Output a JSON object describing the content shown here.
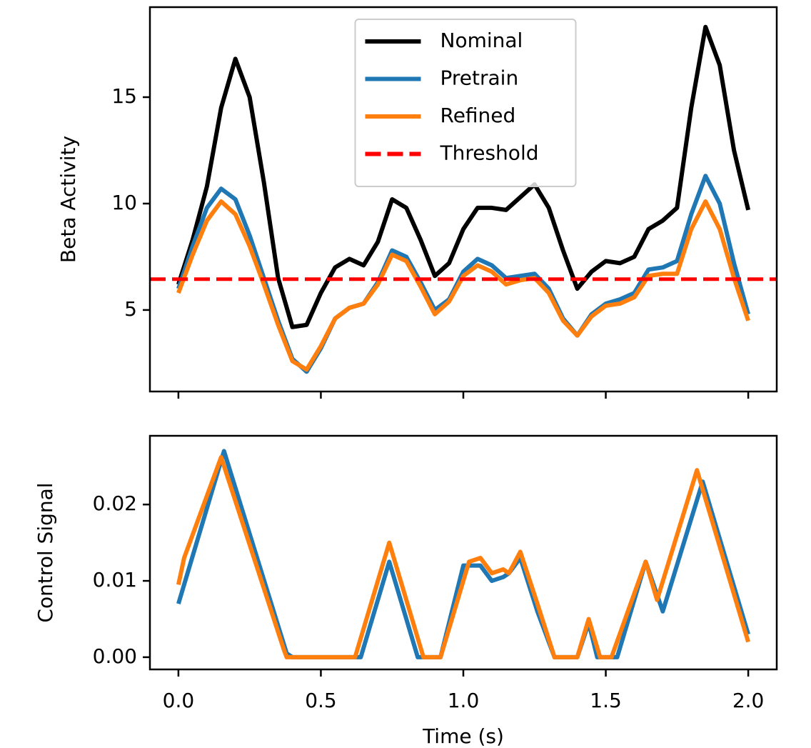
{
  "chart_data": [
    {
      "type": "line",
      "ylabel": "Beta Activity",
      "x": [
        0,
        0.05,
        0.1,
        0.15,
        0.2,
        0.25,
        0.3,
        0.35,
        0.4,
        0.45,
        0.5,
        0.55,
        0.6,
        0.65,
        0.7,
        0.75,
        0.8,
        0.85,
        0.9,
        0.95,
        1.0,
        1.05,
        1.1,
        1.15,
        1.2,
        1.25,
        1.3,
        1.35,
        1.4,
        1.45,
        1.5,
        1.55,
        1.6,
        1.65,
        1.7,
        1.75,
        1.8,
        1.85,
        1.9,
        1.95,
        2.0
      ],
      "series": [
        {
          "name": "Nominal",
          "color": "#000000",
          "values": [
            6.2,
            8.3,
            10.8,
            14.5,
            16.8,
            15.0,
            11.0,
            6.5,
            4.2,
            4.3,
            5.8,
            7.0,
            7.4,
            7.1,
            8.2,
            10.2,
            9.8,
            8.3,
            6.6,
            7.2,
            8.8,
            9.8,
            9.8,
            9.7,
            10.3,
            10.9,
            9.8,
            7.8,
            6.0,
            6.8,
            7.3,
            7.2,
            7.5,
            8.8,
            9.2,
            9.8,
            14.5,
            18.3,
            16.5,
            12.5,
            9.7
          ]
        },
        {
          "name": "Pretrain",
          "color": "#1f77b4",
          "values": [
            6.0,
            8.0,
            9.8,
            10.7,
            10.2,
            8.5,
            6.5,
            4.5,
            2.7,
            2.1,
            3.2,
            4.6,
            5.1,
            5.3,
            6.3,
            7.8,
            7.5,
            6.3,
            5.0,
            5.5,
            6.8,
            7.4,
            7.1,
            6.5,
            6.6,
            6.7,
            6.0,
            4.6,
            3.8,
            4.8,
            5.3,
            5.5,
            5.8,
            6.9,
            7.0,
            7.3,
            9.5,
            11.3,
            10.0,
            7.2,
            4.8
          ]
        },
        {
          "name": "Refined",
          "color": "#ff7f0e",
          "values": [
            5.8,
            7.6,
            9.2,
            10.1,
            9.5,
            8.0,
            6.2,
            4.3,
            2.6,
            2.2,
            3.3,
            4.6,
            5.1,
            5.3,
            6.2,
            7.6,
            7.3,
            6.1,
            4.8,
            5.4,
            6.6,
            7.1,
            6.8,
            6.2,
            6.4,
            6.5,
            5.8,
            4.5,
            3.8,
            4.7,
            5.2,
            5.3,
            5.6,
            6.6,
            6.7,
            6.7,
            8.8,
            10.1,
            8.8,
            6.5,
            4.5
          ]
        }
      ],
      "threshold": {
        "name": "Threshold",
        "value": 6.45,
        "color": "#ff0000",
        "style": "dashed"
      },
      "xlim": [
        -0.1,
        2.1
      ],
      "xticks": [
        {
          "value": 0,
          "label": "0.0"
        },
        0.5,
        {
          "value": 1,
          "label": "1.0"
        },
        1.5,
        {
          "value": 2,
          "label": "2.0"
        }
      ],
      "xtick_labels": false,
      "ylim": [
        1.17,
        19.23
      ],
      "yticks": [
        5,
        10,
        15
      ],
      "legend": "upper center"
    },
    {
      "type": "line",
      "xlabel": "Time (s)",
      "ylabel": "Control Signal",
      "series": [
        {
          "name": "Pretrain",
          "color": "#1f77b4",
          "x": [
            0,
            0.16,
            0.38,
            0.4,
            0.64,
            0.74,
            0.84,
            0.92,
            1.0,
            1.04,
            1.06,
            1.1,
            1.14,
            1.16,
            1.2,
            1.26,
            1.32,
            1.4,
            1.44,
            1.47,
            1.54,
            1.64,
            1.7,
            1.84,
            2.0
          ],
          "values": [
            0.007,
            0.027,
            0.0005,
            0,
            0,
            0.0125,
            0,
            0,
            0.012,
            0.012,
            0.012,
            0.01,
            0.0105,
            0.011,
            0.013,
            0.006,
            0,
            0,
            0.0045,
            0,
            0,
            0.0125,
            0.006,
            0.023,
            0.003
          ]
        },
        {
          "name": "Refined",
          "color": "#ff7f0e",
          "x": [
            0,
            0.02,
            0.15,
            0.37,
            0.38,
            0.62,
            0.74,
            0.86,
            0.92,
            1.02,
            1.06,
            1.1,
            1.14,
            1.16,
            1.2,
            1.26,
            1.32,
            1.4,
            1.44,
            1.48,
            1.52,
            1.64,
            1.68,
            1.82,
            2.0
          ],
          "values": [
            0.0095,
            0.013,
            0.0262,
            0.001,
            0,
            0,
            0.015,
            0,
            0,
            0.0125,
            0.013,
            0.011,
            0.0115,
            0.011,
            0.0138,
            0.007,
            0,
            0,
            0.005,
            0,
            0,
            0.0125,
            0.0075,
            0.0245,
            0.002
          ]
        }
      ],
      "xlim": [
        -0.1,
        2.1
      ],
      "xticks": [
        {
          "value": 0,
          "label": "0.0"
        },
        0.5,
        {
          "value": 1,
          "label": "1.0"
        },
        1.5,
        {
          "value": 2,
          "label": "2.0"
        }
      ],
      "xtick_labels": true,
      "ylim": [
        -0.0016,
        0.029
      ],
      "yticks": [
        {
          "value": 0,
          "label": "0.00"
        },
        {
          "value": 0.01,
          "label": "0.01"
        },
        {
          "value": 0.02,
          "label": "0.02"
        }
      ]
    }
  ]
}
